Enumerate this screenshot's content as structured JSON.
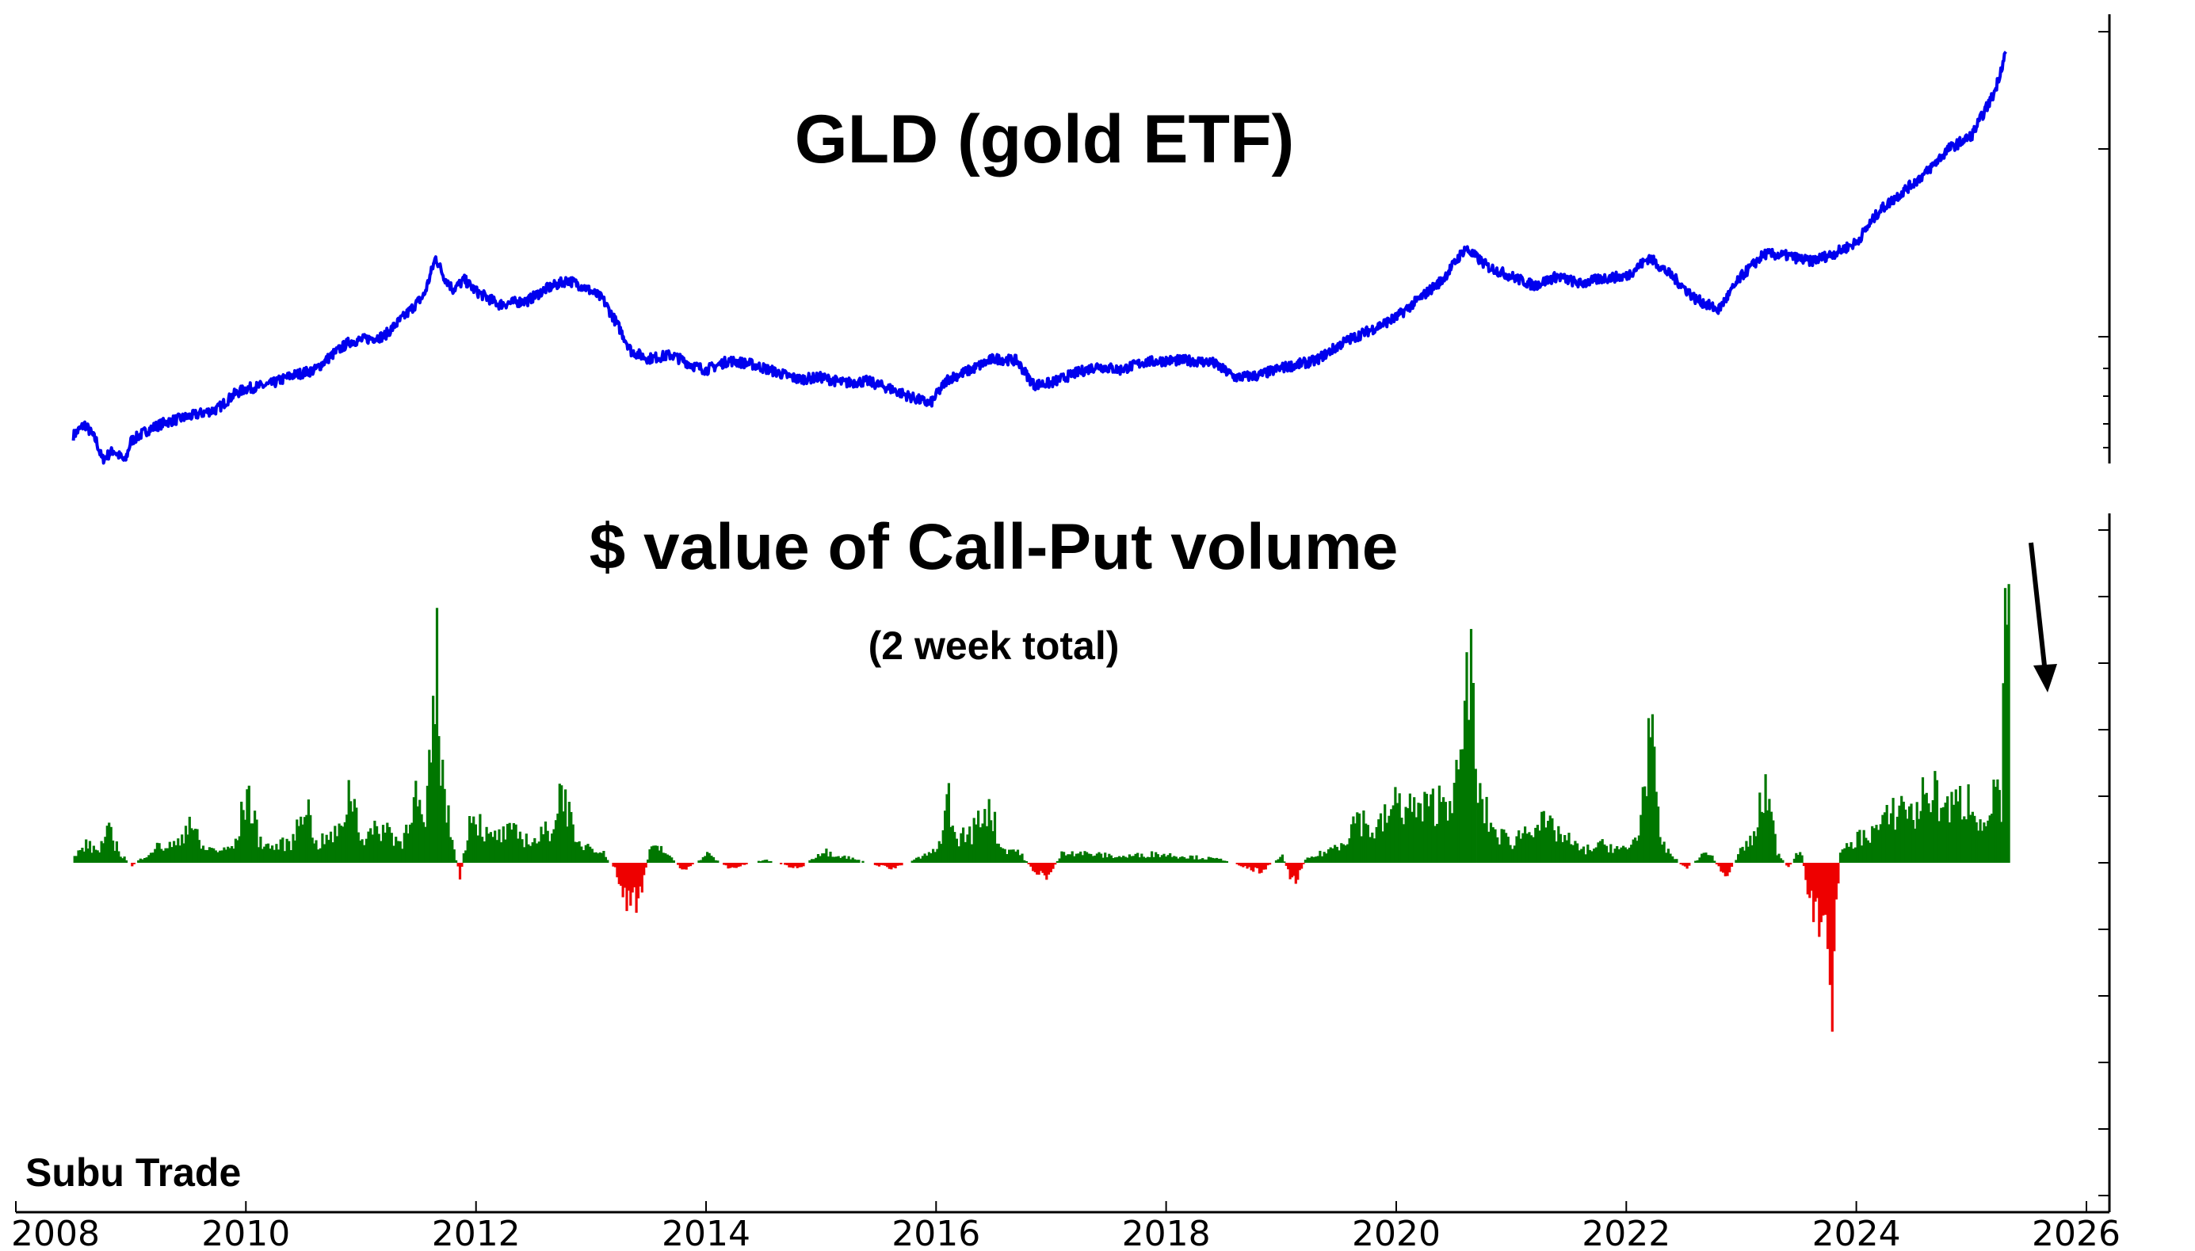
{
  "watermark": "Subu Trade",
  "chart_data": [
    {
      "type": "line",
      "title": "GLD (gold ETF)",
      "xlabel": "",
      "ylabel": "",
      "xlim": [
        2008.0,
        2026.2
      ],
      "ylim": [
        70,
        310
      ],
      "grid": false,
      "color": "#0000ee",
      "series": [
        {
          "x": [
            2008.5,
            2008.6,
            2008.7,
            2008.75,
            2008.85,
            2008.95,
            2009.0,
            2009.15,
            2009.3,
            2009.5,
            2009.75,
            2009.9,
            2010.0,
            2010.2,
            2010.4,
            2010.6,
            2010.75,
            2010.9,
            2011.0,
            2011.2,
            2011.4,
            2011.55,
            2011.65,
            2011.72,
            2011.8,
            2011.9,
            2012.0,
            2012.2,
            2012.45,
            2012.6,
            2012.8,
            2012.95,
            2013.1,
            2013.25,
            2013.35,
            2013.5,
            2013.7,
            2013.9,
            2014.0,
            2014.2,
            2014.4,
            2014.6,
            2014.8,
            2015.0,
            2015.2,
            2015.4,
            2015.6,
            2015.8,
            2015.95,
            2016.1,
            2016.3,
            2016.5,
            2016.7,
            2016.85,
            2017.0,
            2017.2,
            2017.4,
            2017.6,
            2017.8,
            2018.0,
            2018.2,
            2018.4,
            2018.6,
            2018.8,
            2019.0,
            2019.3,
            2019.55,
            2019.8,
            2020.0,
            2020.2,
            2020.4,
            2020.6,
            2020.8,
            2021.0,
            2021.2,
            2021.4,
            2021.6,
            2021.8,
            2022.0,
            2022.2,
            2022.4,
            2022.6,
            2022.8,
            2023.0,
            2023.2,
            2023.4,
            2023.6,
            2023.8,
            2024.0,
            2024.2,
            2024.4,
            2024.6,
            2024.8,
            2025.0,
            2025.2,
            2025.3
          ],
          "y": [
            85,
            91,
            82,
            72,
            77,
            71,
            82,
            88,
            92,
            95,
            99,
            107,
            110,
            112,
            117,
            120,
            128,
            135,
            136,
            138,
            150,
            160,
            180,
            170,
            163,
            168,
            162,
            155,
            157,
            163,
            168,
            164,
            158,
            142,
            130,
            126,
            128,
            122,
            120,
            125,
            123,
            119,
            115,
            116,
            113,
            114,
            110,
            105,
            102,
            115,
            120,
            126,
            125,
            112,
            113,
            118,
            122,
            120,
            124,
            125,
            125,
            124,
            116,
            117,
            121,
            125,
            135,
            142,
            148,
            158,
            168,
            185,
            175,
            170,
            165,
            170,
            166,
            169,
            170,
            180,
            170,
            158,
            152,
            170,
            182,
            181,
            178,
            182,
            188,
            205,
            215,
            225,
            238,
            245,
            268,
            290
          ]
        }
      ]
    },
    {
      "type": "area",
      "title": "$ value of Call-Put volume",
      "subtitle": "(2 week total)",
      "xlabel": "",
      "ylabel": "",
      "xlim": [
        2008.0,
        2026.2
      ],
      "ylim": [
        -105,
        105
      ],
      "x_ticks": [
        "2008",
        "2010",
        "2012",
        "2014",
        "2016",
        "2018",
        "2020",
        "2022",
        "2024",
        "2026"
      ],
      "grid": false,
      "positive_color": "#007700",
      "negative_color": "#ee0000",
      "annotation": "arrow pointing down",
      "series": [
        {
          "x": [
            2008.5,
            2008.6,
            2008.7,
            2008.8,
            2008.9,
            2009.0,
            2009.2,
            2009.4,
            2009.5,
            2009.6,
            2009.8,
            2009.9,
            2010.0,
            2010.1,
            2010.2,
            2010.4,
            2010.5,
            2010.6,
            2010.8,
            2010.9,
            2011.0,
            2011.2,
            2011.35,
            2011.45,
            2011.55,
            2011.65,
            2011.7,
            2011.75,
            2011.85,
            2011.95,
            2012.1,
            2012.3,
            2012.5,
            2012.65,
            2012.75,
            2012.85,
            2013.0,
            2013.1,
            2013.2,
            2013.3,
            2013.4,
            2013.5,
            2013.6,
            2013.8,
            2014.0,
            2014.2,
            2014.5,
            2014.8,
            2015.0,
            2015.3,
            2015.6,
            2015.8,
            2016.0,
            2016.1,
            2016.15,
            2016.3,
            2016.45,
            2016.55,
            2016.7,
            2016.85,
            2016.95,
            2017.1,
            2017.3,
            2017.6,
            2017.9,
            2018.2,
            2018.5,
            2018.8,
            2019.0,
            2019.1,
            2019.2,
            2019.4,
            2019.55,
            2019.65,
            2019.8,
            2020.0,
            2020.2,
            2020.4,
            2020.55,
            2020.62,
            2020.7,
            2020.85,
            2021.0,
            2021.2,
            2021.4,
            2021.6,
            2021.8,
            2022.0,
            2022.1,
            2022.2,
            2022.25,
            2022.3,
            2022.5,
            2022.7,
            2022.85,
            2023.0,
            2023.1,
            2023.2,
            2023.3,
            2023.4,
            2023.5,
            2023.6,
            2023.7,
            2023.78,
            2023.85,
            2024.0,
            2024.2,
            2024.4,
            2024.5,
            2024.6,
            2024.8,
            2025.0,
            2025.1,
            2025.2,
            2025.25,
            2025.3,
            2025.33
          ],
          "y": [
            2,
            6,
            4,
            10,
            3,
            -1,
            5,
            6,
            15,
            5,
            4,
            6,
            24,
            8,
            5,
            7,
            22,
            6,
            10,
            25,
            8,
            12,
            6,
            24,
            10,
            63,
            28,
            14,
            -5,
            18,
            8,
            10,
            7,
            12,
            26,
            6,
            6,
            3,
            -2,
            -14,
            -13,
            4,
            5,
            -3,
            3,
            -2,
            1,
            -2,
            4,
            1,
            -2,
            1,
            4,
            22,
            8,
            10,
            20,
            5,
            4,
            -3,
            -5,
            4,
            3,
            2,
            3,
            2,
            1,
            -3,
            2,
            -7,
            1,
            4,
            8,
            16,
            10,
            20,
            17,
            21,
            28,
            73,
            22,
            10,
            7,
            14,
            10,
            4,
            6,
            4,
            10,
            48,
            18,
            6,
            -2,
            4,
            -5,
            5,
            8,
            26,
            4,
            -2,
            5,
            -14,
            -20,
            -42,
            3,
            8,
            12,
            20,
            15,
            25,
            18,
            22,
            10,
            26,
            15,
            102,
            50
          ]
        }
      ]
    }
  ]
}
